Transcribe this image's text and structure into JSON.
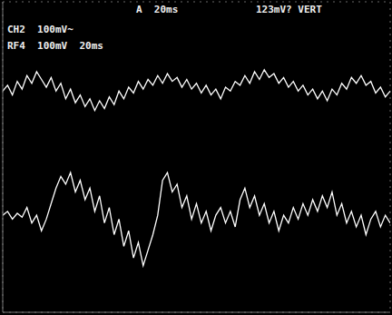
{
  "chart_data": {
    "type": "line",
    "annotations": [
      "A  20ms",
      "123mV? VERT",
      "CH2  100mV~",
      "RF4  100mV  20ms"
    ],
    "x": [
      0,
      2.5,
      5,
      7.5,
      10,
      12.5,
      15,
      17.5,
      20,
      22.5,
      25,
      27.5,
      30,
      32.5,
      35,
      37.5,
      40,
      42.5,
      45,
      47.5,
      50,
      52.5,
      55,
      57.5,
      60,
      62.5,
      65,
      67.5,
      70,
      72.5,
      75,
      77.5,
      80,
      82.5,
      85,
      87.5,
      90,
      92.5,
      95,
      97.5,
      100,
      102.5,
      105,
      107.5,
      110,
      112.5,
      115,
      117.5,
      120,
      122.5,
      125,
      127.5,
      130,
      132.5,
      135,
      137.5,
      140,
      142.5,
      145,
      147.5,
      150,
      152.5,
      155,
      157.5,
      160,
      162.5,
      165,
      167.5,
      170,
      172.5,
      175,
      177.5,
      180,
      182.5,
      185,
      187.5,
      190,
      192.5,
      195,
      197.5,
      200
    ],
    "series": [
      {
        "color": "#ffffff",
        "values": [
          170,
          185,
          160,
          195,
          175,
          210,
          190,
          220,
          200,
          180,
          205,
          170,
          190,
          150,
          175,
          140,
          160,
          130,
          150,
          120,
          145,
          125,
          155,
          135,
          170,
          150,
          180,
          165,
          195,
          175,
          200,
          185,
          210,
          190,
          215,
          195,
          205,
          180,
          200,
          175,
          190,
          165,
          185,
          160,
          175,
          150,
          180,
          170,
          195,
          185,
          210,
          190,
          220,
          200,
          225,
          205,
          215,
          190,
          205,
          180,
          195,
          170,
          185,
          160,
          175,
          150,
          170,
          145,
          175,
          160,
          190,
          175,
          205,
          190,
          210,
          185,
          195,
          165,
          180,
          155,
          170
        ]
      },
      {
        "color": "#ffffff",
        "values": [
          -150,
          -140,
          -160,
          -145,
          -155,
          -130,
          -170,
          -150,
          -190,
          -160,
          -120,
          -80,
          -50,
          -70,
          -40,
          -90,
          -60,
          -110,
          -80,
          -140,
          -100,
          -170,
          -130,
          -200,
          -160,
          -230,
          -190,
          -260,
          -220,
          -280,
          -240,
          -200,
          -150,
          -60,
          -40,
          -90,
          -70,
          -130,
          -100,
          -160,
          -120,
          -170,
          -140,
          -190,
          -150,
          -130,
          -170,
          -140,
          -180,
          -110,
          -80,
          -130,
          -100,
          -150,
          -120,
          -170,
          -140,
          -190,
          -150,
          -170,
          -130,
          -160,
          -120,
          -150,
          -110,
          -140,
          -100,
          -130,
          -90,
          -150,
          -120,
          -170,
          -140,
          -180,
          -150,
          -200,
          -160,
          -140,
          -180,
          -150,
          -170
        ]
      }
    ],
    "xlim": [
      0,
      200
    ],
    "xticks": [
      0,
      20,
      40,
      60,
      80,
      100,
      120,
      140,
      160,
      180,
      200
    ],
    "ylim": [
      -400,
      400
    ],
    "yticks": [
      -400,
      -300,
      -200,
      -100,
      0,
      100,
      200,
      300,
      400
    ],
    "grid": true,
    "tick_labels": false
  }
}
